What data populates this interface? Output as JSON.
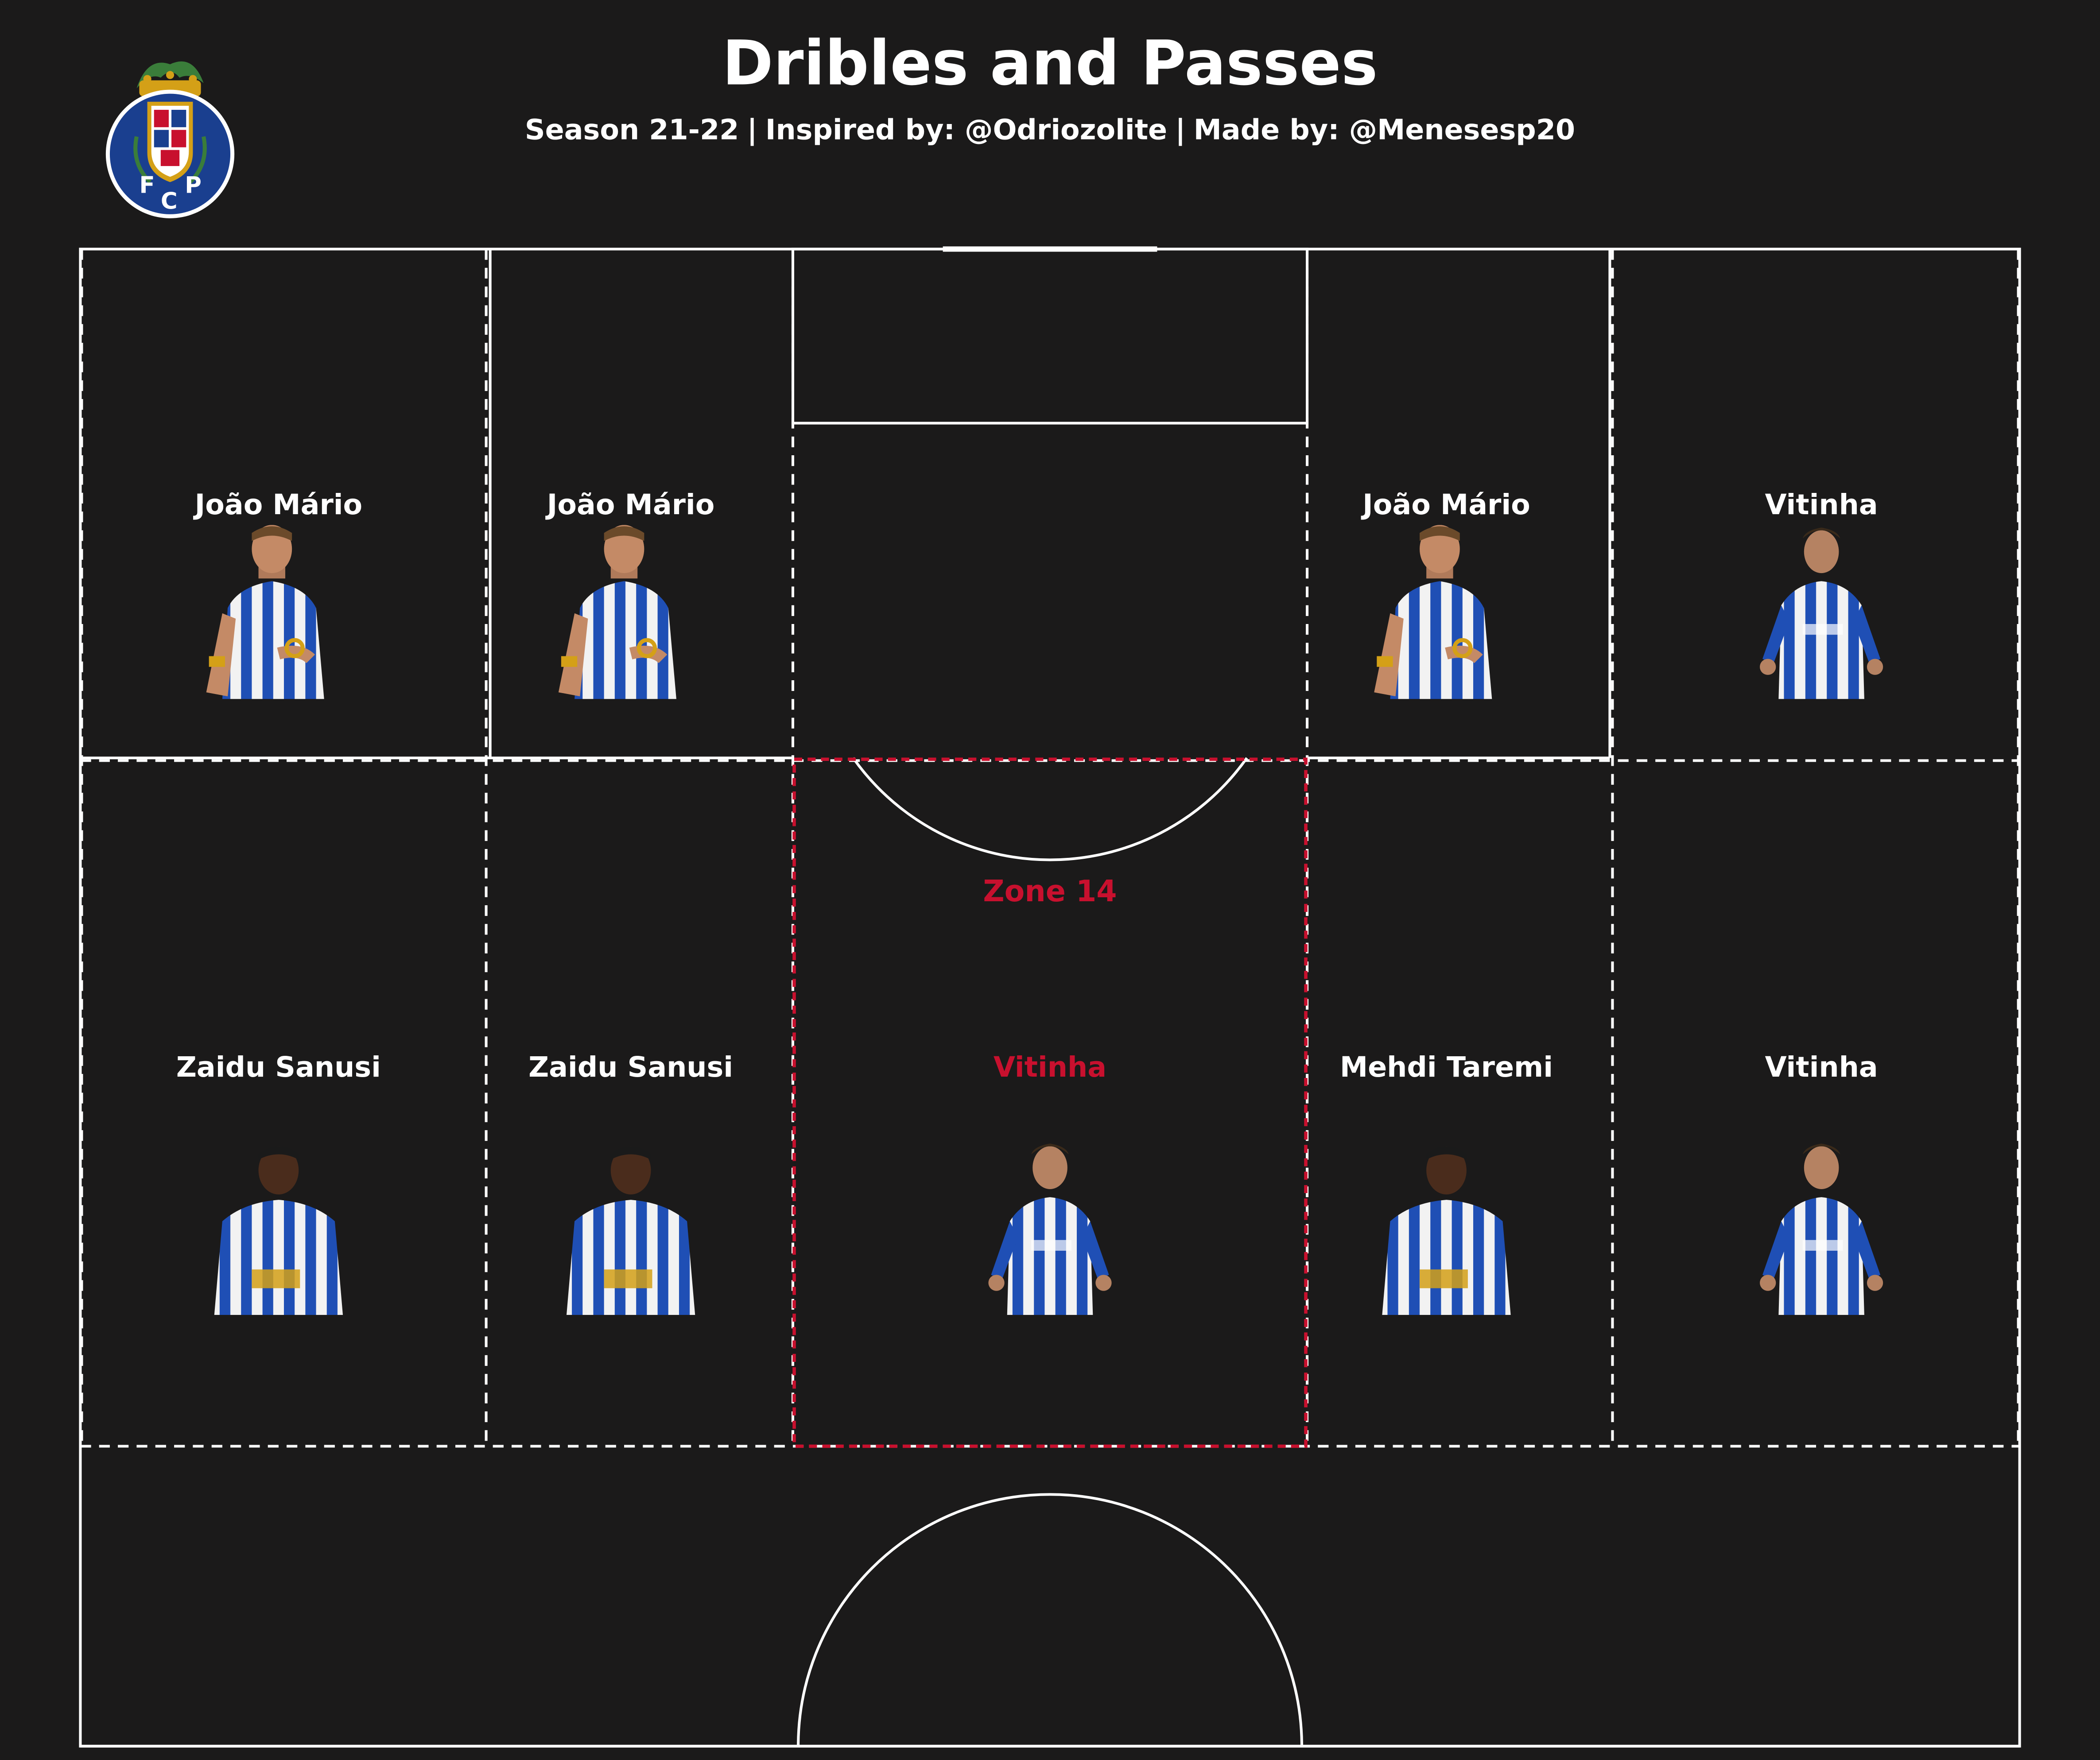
{
  "header": {
    "title": "Dribles and Passes",
    "season": "Season 21-22",
    "inspired": "Inspired by: @Odriozolite",
    "made": "Made by: @Menesesp20",
    "separator": "|"
  },
  "logo": {
    "letters": [
      "F",
      "C",
      "P"
    ],
    "colors": {
      "blue": "#1a3f8f",
      "gold": "#d4a017",
      "red": "#c8102e"
    }
  },
  "zone": {
    "label": "Zone 14",
    "highlight_color": "#c8102e"
  },
  "zones": [
    {
      "name": "João Mário",
      "player": "joao-mario",
      "highlight": false
    },
    {
      "name": "João Mário",
      "player": "joao-mario",
      "highlight": false
    },
    {
      "name": "João Mário",
      "player": "joao-mario",
      "highlight": false
    },
    {
      "name": "Vitinha",
      "player": "vitinha",
      "highlight": false
    },
    {
      "name": "Zaidu Sanusi",
      "player": "zaidu-sanusi",
      "highlight": false
    },
    {
      "name": "Zaidu Sanusi",
      "player": "zaidu-sanusi",
      "highlight": false
    },
    {
      "name": "Vitinha",
      "player": "vitinha",
      "highlight": true
    },
    {
      "name": "Mehdi Taremi",
      "player": "mehdi-taremi",
      "highlight": false
    },
    {
      "name": "Vitinha",
      "player": "vitinha",
      "highlight": false
    }
  ],
  "colors": {
    "background": "#1b1a1a",
    "lines": "#ffffff",
    "kit_blue": "#1f4fb5",
    "kit_white": "#f2f2f2"
  }
}
